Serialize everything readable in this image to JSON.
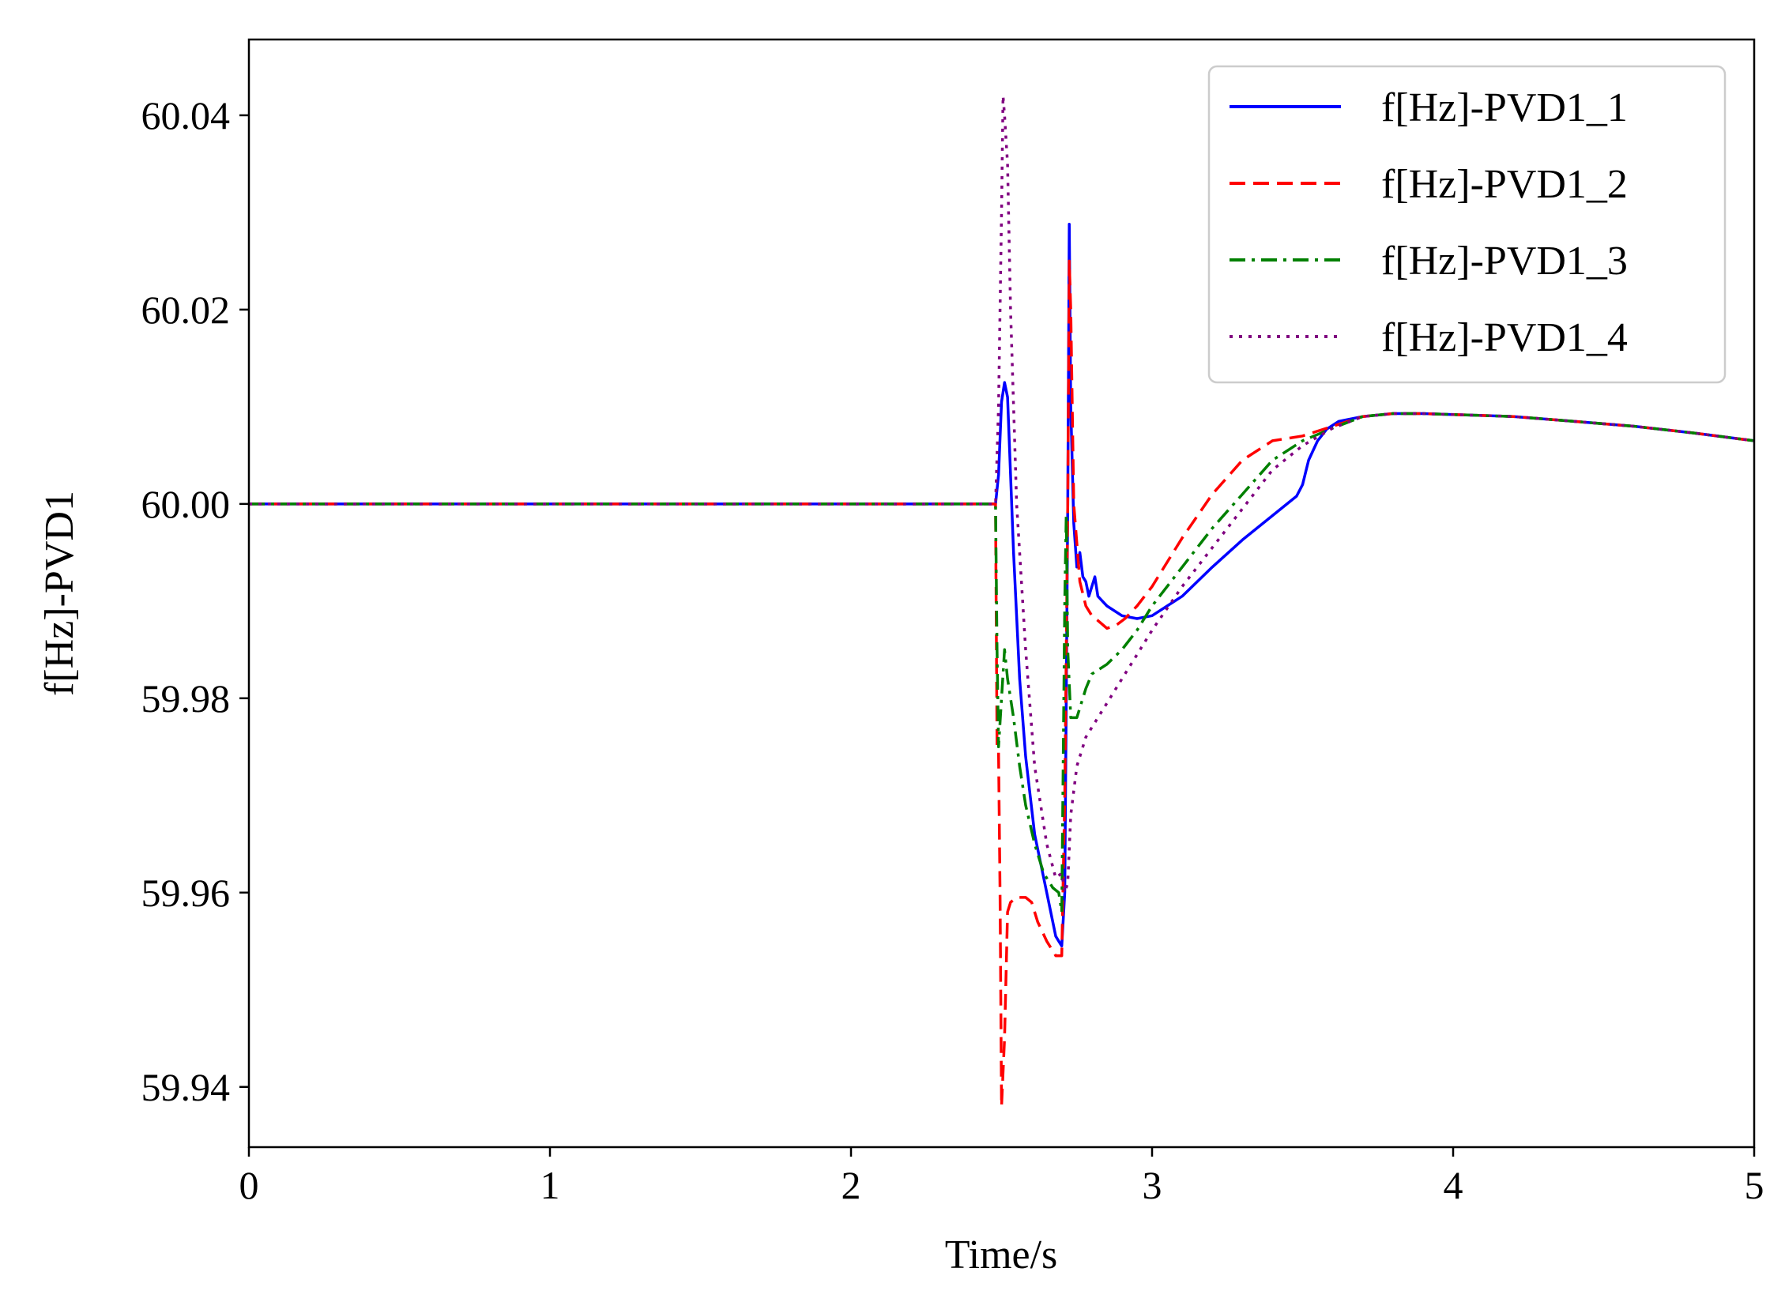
{
  "chart_data": {
    "type": "line",
    "title": "",
    "xlabel": "Time/s",
    "ylabel": "f[Hz]-PVD1",
    "xlim": [
      0,
      5
    ],
    "ylim": [
      59.9338,
      60.0478
    ],
    "x_ticks": [
      0,
      1,
      2,
      3,
      4,
      5
    ],
    "x_tick_labels": [
      "0",
      "1",
      "2",
      "3",
      "4",
      "5"
    ],
    "y_ticks": [
      59.94,
      59.96,
      59.98,
      60.0,
      60.02,
      60.04
    ],
    "y_tick_labels": [
      "59.94",
      "59.96",
      "59.98",
      "60.00",
      "60.02",
      "60.04"
    ],
    "grid": false,
    "legend_position": "top-right",
    "series": [
      {
        "name": "f[Hz]-PVD1_1",
        "color": "#0000ff",
        "style": "solid",
        "points": [
          [
            0,
            60.0
          ],
          [
            2.48,
            60.0
          ],
          [
            2.49,
            60.003
          ],
          [
            2.5,
            60.0105
          ],
          [
            2.51,
            60.0125
          ],
          [
            2.52,
            60.011
          ],
          [
            2.54,
            59.995
          ],
          [
            2.56,
            59.982
          ],
          [
            2.58,
            59.974
          ],
          [
            2.61,
            59.966
          ],
          [
            2.65,
            59.96
          ],
          [
            2.68,
            59.9555
          ],
          [
            2.69,
            59.955
          ],
          [
            2.7,
            59.9545
          ],
          [
            2.71,
            59.96
          ],
          [
            2.72,
            60.0
          ],
          [
            2.725,
            60.0288
          ],
          [
            2.73,
            60.01
          ],
          [
            2.74,
            59.998
          ],
          [
            2.75,
            59.9935
          ],
          [
            2.76,
            59.995
          ],
          [
            2.77,
            59.9925
          ],
          [
            2.78,
            59.992
          ],
          [
            2.79,
            59.9905
          ],
          [
            2.8,
            59.9915
          ],
          [
            2.81,
            59.9925
          ],
          [
            2.82,
            59.9905
          ],
          [
            2.85,
            59.9895
          ],
          [
            2.9,
            59.9885
          ],
          [
            2.95,
            59.9882
          ],
          [
            3.0,
            59.9885
          ],
          [
            3.1,
            59.9905
          ],
          [
            3.2,
            59.9935
          ],
          [
            3.3,
            59.9963
          ],
          [
            3.4,
            59.9988
          ],
          [
            3.48,
            60.0008
          ],
          [
            3.5,
            60.002
          ],
          [
            3.52,
            60.0045
          ],
          [
            3.55,
            60.0065
          ],
          [
            3.58,
            60.0077
          ],
          [
            3.62,
            60.0085
          ],
          [
            3.7,
            60.009
          ],
          [
            3.8,
            60.0093
          ],
          [
            3.9,
            60.0093
          ],
          [
            4.0,
            60.0092
          ],
          [
            4.2,
            60.009
          ],
          [
            4.4,
            60.0085
          ],
          [
            4.6,
            60.008
          ],
          [
            4.8,
            60.0073
          ],
          [
            5.0,
            60.0065
          ]
        ]
      },
      {
        "name": "f[Hz]-PVD1_2",
        "color": "#ff0000",
        "style": "dashed",
        "points": [
          [
            0,
            60.0
          ],
          [
            2.48,
            60.0
          ],
          [
            2.485,
            59.975
          ],
          [
            2.49,
            59.9745
          ],
          [
            2.495,
            59.96
          ],
          [
            2.5,
            59.938
          ],
          [
            2.51,
            59.945
          ],
          [
            2.52,
            59.958
          ],
          [
            2.53,
            59.959
          ],
          [
            2.55,
            59.9595
          ],
          [
            2.58,
            59.9595
          ],
          [
            2.6,
            59.959
          ],
          [
            2.62,
            59.957
          ],
          [
            2.65,
            59.955
          ],
          [
            2.68,
            59.9535
          ],
          [
            2.7,
            59.9535
          ],
          [
            2.71,
            59.97
          ],
          [
            2.72,
            60.0
          ],
          [
            2.725,
            60.025
          ],
          [
            2.73,
            60.02
          ],
          [
            2.74,
            60.0
          ],
          [
            2.76,
            59.992
          ],
          [
            2.78,
            59.9895
          ],
          [
            2.8,
            59.9885
          ],
          [
            2.82,
            59.988
          ],
          [
            2.85,
            59.9872
          ],
          [
            2.88,
            59.9875
          ],
          [
            2.91,
            59.9882
          ],
          [
            2.95,
            59.9895
          ],
          [
            3.0,
            59.9915
          ],
          [
            3.1,
            59.9965
          ],
          [
            3.2,
            60.001
          ],
          [
            3.3,
            60.0045
          ],
          [
            3.4,
            60.0065
          ],
          [
            3.5,
            60.007
          ],
          [
            3.6,
            60.008
          ],
          [
            3.7,
            60.009
          ],
          [
            3.8,
            60.0093
          ],
          [
            3.9,
            60.0093
          ],
          [
            4.0,
            60.0092
          ],
          [
            4.2,
            60.009
          ],
          [
            4.4,
            60.0085
          ],
          [
            4.6,
            60.008
          ],
          [
            4.8,
            60.0073
          ],
          [
            5.0,
            60.0065
          ]
        ]
      },
      {
        "name": "f[Hz]-PVD1_3",
        "color": "#008000",
        "style": "dashdot",
        "points": [
          [
            0,
            60.0
          ],
          [
            2.48,
            60.0
          ],
          [
            2.485,
            59.985
          ],
          [
            2.49,
            59.975
          ],
          [
            2.5,
            59.98
          ],
          [
            2.51,
            59.985
          ],
          [
            2.52,
            59.982
          ],
          [
            2.54,
            59.978
          ],
          [
            2.56,
            59.973
          ],
          [
            2.58,
            59.969
          ],
          [
            2.61,
            59.965
          ],
          [
            2.64,
            59.962
          ],
          [
            2.67,
            59.9605
          ],
          [
            2.69,
            59.96
          ],
          [
            2.7,
            59.958
          ],
          [
            2.71,
            59.99
          ],
          [
            2.715,
            59.999
          ],
          [
            2.72,
            59.985
          ],
          [
            2.73,
            59.978
          ],
          [
            2.75,
            59.978
          ],
          [
            2.78,
            59.981
          ],
          [
            2.8,
            59.9825
          ],
          [
            2.85,
            59.9835
          ],
          [
            2.9,
            59.985
          ],
          [
            2.95,
            59.987
          ],
          [
            3.0,
            59.9895
          ],
          [
            3.1,
            59.9935
          ],
          [
            3.2,
            59.9975
          ],
          [
            3.3,
            60.001
          ],
          [
            3.4,
            60.0045
          ],
          [
            3.5,
            60.0065
          ],
          [
            3.6,
            60.0078
          ],
          [
            3.7,
            60.009
          ],
          [
            3.8,
            60.0093
          ],
          [
            3.9,
            60.0093
          ],
          [
            4.0,
            60.0092
          ],
          [
            4.2,
            60.009
          ],
          [
            4.4,
            60.0085
          ],
          [
            4.6,
            60.008
          ],
          [
            4.8,
            60.0073
          ],
          [
            5.0,
            60.0065
          ]
        ]
      },
      {
        "name": "f[Hz]-PVD1_4",
        "color": "#800080",
        "style": "dotted",
        "points": [
          [
            0,
            60.0
          ],
          [
            2.48,
            60.0
          ],
          [
            2.49,
            60.01
          ],
          [
            2.5,
            60.03
          ],
          [
            2.505,
            60.042
          ],
          [
            2.51,
            60.04
          ],
          [
            2.52,
            60.035
          ],
          [
            2.53,
            60.02
          ],
          [
            2.55,
            60.0
          ],
          [
            2.58,
            59.985
          ],
          [
            2.61,
            59.973
          ],
          [
            2.65,
            59.965
          ],
          [
            2.68,
            59.9615
          ],
          [
            2.7,
            59.962
          ],
          [
            2.71,
            59.96
          ],
          [
            2.72,
            59.961
          ],
          [
            2.73,
            59.968
          ],
          [
            2.75,
            59.973
          ],
          [
            2.78,
            59.976
          ],
          [
            2.82,
            59.978
          ],
          [
            2.86,
            59.98
          ],
          [
            2.9,
            59.982
          ],
          [
            2.95,
            59.9845
          ],
          [
            3.0,
            59.987
          ],
          [
            3.1,
            59.9915
          ],
          [
            3.2,
            59.9955
          ],
          [
            3.3,
            59.9995
          ],
          [
            3.4,
            60.0035
          ],
          [
            3.5,
            60.006
          ],
          [
            3.6,
            60.0078
          ],
          [
            3.7,
            60.009
          ],
          [
            3.8,
            60.0093
          ],
          [
            3.9,
            60.0093
          ],
          [
            4.0,
            60.0092
          ],
          [
            4.2,
            60.009
          ],
          [
            4.4,
            60.0085
          ],
          [
            4.6,
            60.008
          ],
          [
            4.8,
            60.0073
          ],
          [
            5.0,
            60.0065
          ]
        ]
      }
    ]
  }
}
